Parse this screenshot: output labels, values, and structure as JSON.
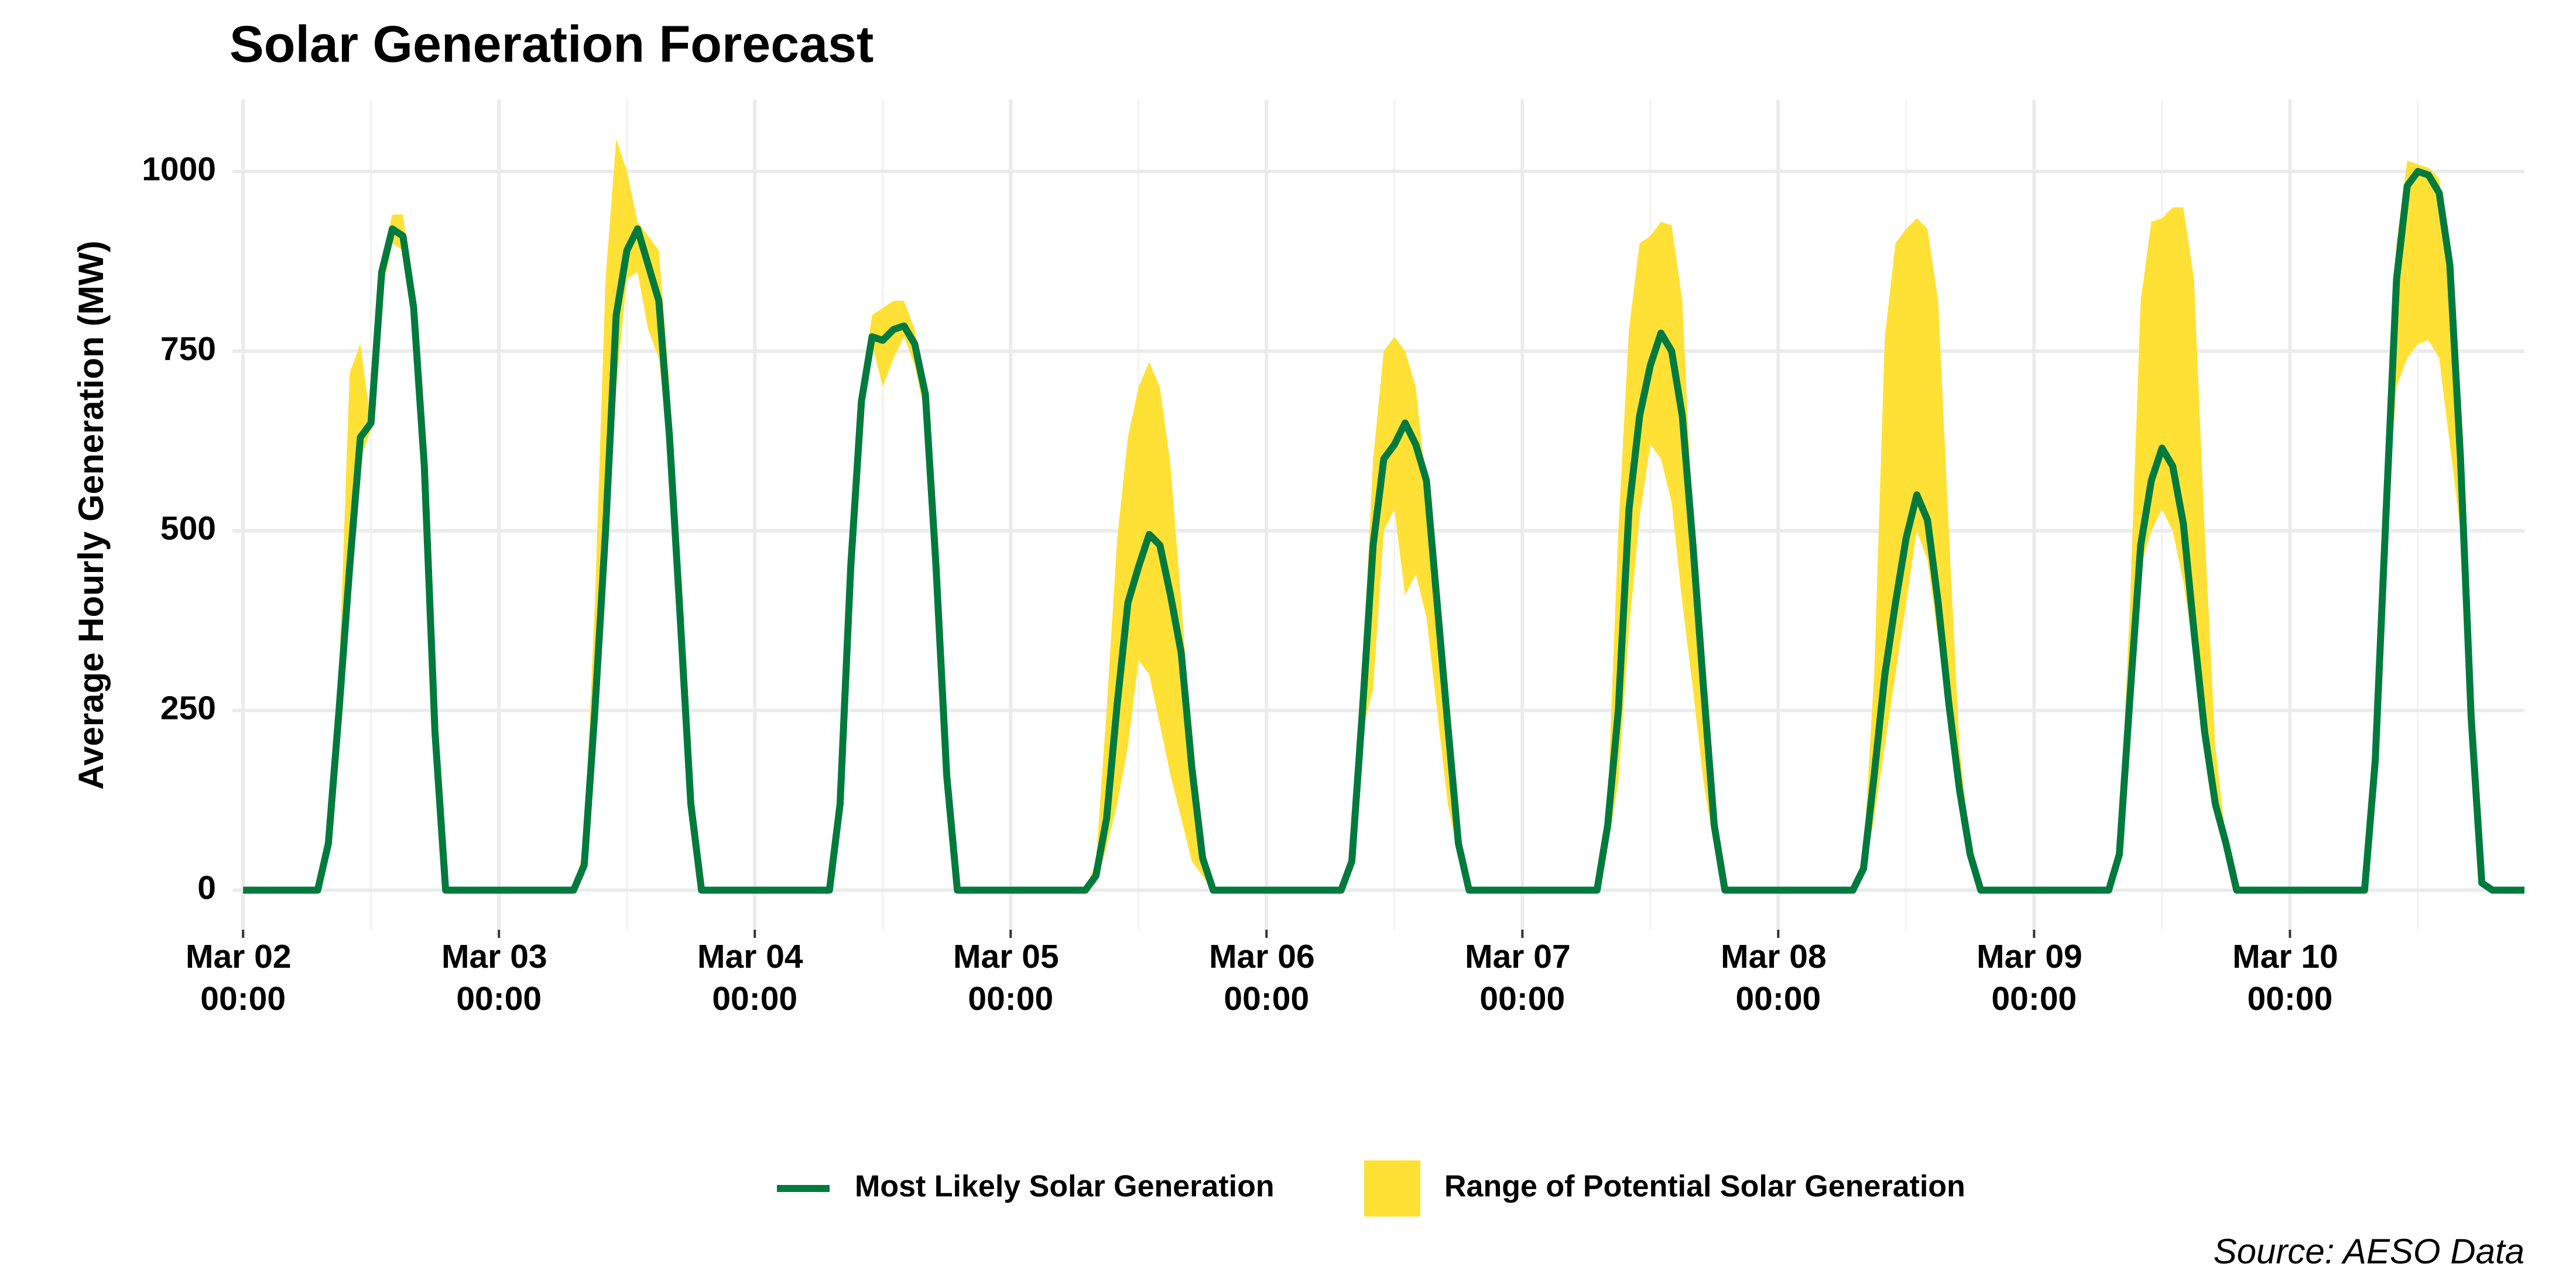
{
  "chart_data": {
    "type": "line",
    "title": "Solar Generation Forecast",
    "ylabel": "Average Hourly Generation (MW)",
    "source": "Source: AESO Data",
    "x": [
      "Mar 02 00:00",
      "Mar 02 07:00",
      "Mar 02 08:00",
      "Mar 02 09:00",
      "Mar 02 10:00",
      "Mar 02 11:00",
      "Mar 02 12:00",
      "Mar 02 13:00",
      "Mar 02 14:00",
      "Mar 02 15:00",
      "Mar 02 16:00",
      "Mar 02 17:00",
      "Mar 02 18:00",
      "Mar 02 19:00",
      "Mar 03 07:00",
      "Mar 03 08:00",
      "Mar 03 09:00",
      "Mar 03 10:00",
      "Mar 03 11:00",
      "Mar 03 12:00",
      "Mar 03 13:00",
      "Mar 03 14:00",
      "Mar 03 15:00",
      "Mar 03 16:00",
      "Mar 03 17:00",
      "Mar 03 18:00",
      "Mar 03 19:00",
      "Mar 04 07:00",
      "Mar 04 08:00",
      "Mar 04 09:00",
      "Mar 04 10:00",
      "Mar 04 11:00",
      "Mar 04 12:00",
      "Mar 04 13:00",
      "Mar 04 14:00",
      "Mar 04 15:00",
      "Mar 04 16:00",
      "Mar 04 17:00",
      "Mar 04 18:00",
      "Mar 04 19:00",
      "Mar 05 07:00",
      "Mar 05 08:00",
      "Mar 05 09:00",
      "Mar 05 10:00",
      "Mar 05 11:00",
      "Mar 05 12:00",
      "Mar 05 13:00",
      "Mar 05 14:00",
      "Mar 05 15:00",
      "Mar 05 16:00",
      "Mar 05 17:00",
      "Mar 05 18:00",
      "Mar 05 19:00",
      "Mar 06 07:00",
      "Mar 06 08:00",
      "Mar 06 09:00",
      "Mar 06 10:00",
      "Mar 06 11:00",
      "Mar 06 12:00",
      "Mar 06 13:00",
      "Mar 06 14:00",
      "Mar 06 15:00",
      "Mar 06 16:00",
      "Mar 06 17:00",
      "Mar 06 18:00",
      "Mar 06 19:00",
      "Mar 07 07:00",
      "Mar 07 08:00",
      "Mar 07 09:00",
      "Mar 07 10:00",
      "Mar 07 11:00",
      "Mar 07 12:00",
      "Mar 07 13:00",
      "Mar 07 14:00",
      "Mar 07 15:00",
      "Mar 07 16:00",
      "Mar 07 17:00",
      "Mar 07 18:00",
      "Mar 07 19:00",
      "Mar 08 07:00",
      "Mar 08 08:00",
      "Mar 08 09:00",
      "Mar 08 10:00",
      "Mar 08 11:00",
      "Mar 08 12:00",
      "Mar 08 13:00",
      "Mar 08 14:00",
      "Mar 08 15:00",
      "Mar 08 16:00",
      "Mar 08 17:00",
      "Mar 08 18:00",
      "Mar 08 19:00",
      "Mar 09 07:00",
      "Mar 09 08:00",
      "Mar 09 09:00",
      "Mar 09 10:00",
      "Mar 09 11:00",
      "Mar 09 12:00",
      "Mar 09 13:00",
      "Mar 09 14:00",
      "Mar 09 15:00",
      "Mar 09 16:00",
      "Mar 09 17:00",
      "Mar 09 18:00",
      "Mar 09 19:00",
      "Mar 10 07:00",
      "Mar 10 08:00",
      "Mar 10 09:00",
      "Mar 10 10:00",
      "Mar 10 11:00",
      "Mar 10 12:00",
      "Mar 10 13:00",
      "Mar 10 14:00",
      "Mar 10 15:00",
      "Mar 10 16:00",
      "Mar 10 17:00",
      "Mar 10 18:00",
      "Mar 10 19:00",
      "Mar 10 22:00"
    ],
    "series": [
      {
        "name": "Most Likely Solar Generation",
        "color": "#007a3d",
        "values": [
          0,
          0,
          65,
          250,
          450,
          630,
          650,
          860,
          920,
          910,
          810,
          590,
          220,
          0,
          0,
          35,
          250,
          500,
          800,
          890,
          920,
          870,
          820,
          630,
          380,
          120,
          0,
          0,
          120,
          450,
          680,
          770,
          765,
          780,
          785,
          760,
          690,
          450,
          160,
          0,
          0,
          20,
          100,
          260,
          400,
          450,
          495,
          480,
          410,
          330,
          170,
          45,
          0,
          0,
          40,
          250,
          480,
          600,
          620,
          650,
          620,
          570,
          400,
          230,
          65,
          0,
          0,
          90,
          250,
          530,
          660,
          730,
          775,
          750,
          660,
          480,
          280,
          90,
          0,
          0,
          30,
          160,
          300,
          400,
          490,
          550,
          515,
          400,
          260,
          140,
          50,
          0,
          0,
          50,
          270,
          480,
          570,
          615,
          590,
          510,
          360,
          220,
          120,
          65,
          0,
          0,
          180,
          520,
          850,
          980,
          1000,
          995,
          970,
          870,
          600,
          240,
          10,
          0,
          0
        ]
      },
      {
        "name": "Range of Potential Solar Generation",
        "color": "#ffe135",
        "low": [
          0,
          0,
          60,
          220,
          420,
          600,
          640,
          830,
          900,
          890,
          790,
          560,
          200,
          0,
          0,
          20,
          200,
          450,
          700,
          850,
          860,
          780,
          740,
          600,
          360,
          100,
          0,
          0,
          110,
          430,
          670,
          760,
          700,
          740,
          770,
          730,
          660,
          430,
          150,
          0,
          0,
          10,
          60,
          120,
          200,
          320,
          300,
          230,
          160,
          100,
          40,
          20,
          0,
          0,
          30,
          220,
          280,
          500,
          530,
          410,
          440,
          380,
          250,
          120,
          50,
          0,
          0,
          60,
          150,
          360,
          520,
          620,
          600,
          540,
          400,
          280,
          150,
          60,
          0,
          0,
          20,
          100,
          200,
          300,
          400,
          500,
          460,
          350,
          230,
          120,
          40,
          0,
          0,
          40,
          200,
          450,
          500,
          530,
          500,
          430,
          330,
          200,
          110,
          50,
          0,
          0,
          170,
          500,
          700,
          740,
          760,
          765,
          740,
          620,
          500,
          200,
          5,
          0,
          0
        ],
        "high": [
          0,
          0,
          70,
          300,
          720,
          760,
          650,
          880,
          940,
          940,
          820,
          600,
          220,
          0,
          0,
          60,
          400,
          850,
          1045,
          1000,
          930,
          910,
          890,
          700,
          400,
          130,
          0,
          0,
          130,
          470,
          700,
          800,
          810,
          820,
          820,
          780,
          700,
          460,
          170,
          0,
          0,
          40,
          250,
          490,
          630,
          700,
          735,
          700,
          590,
          400,
          200,
          60,
          0,
          0,
          60,
          300,
          600,
          750,
          770,
          750,
          700,
          560,
          400,
          230,
          70,
          0,
          0,
          120,
          500,
          780,
          900,
          910,
          930,
          925,
          820,
          500,
          290,
          100,
          0,
          0,
          50,
          300,
          770,
          900,
          920,
          935,
          920,
          820,
          500,
          200,
          60,
          0,
          0,
          70,
          400,
          820,
          930,
          935,
          950,
          950,
          850,
          500,
          200,
          70,
          0,
          0,
          190,
          600,
          900,
          1015,
          1010,
          1005,
          990,
          880,
          620,
          250,
          15,
          0,
          0
        ]
      }
    ],
    "xlim": [
      "Mar 01 23:00",
      "Mar 10 22:00"
    ],
    "xticks": [
      "Mar 02 00:00",
      "Mar 03 00:00",
      "Mar 04 00:00",
      "Mar 05 00:00",
      "Mar 06 00:00",
      "Mar 07 00:00",
      "Mar 08 00:00",
      "Mar 09 00:00",
      "Mar 10 00:00"
    ],
    "xminorticks": [
      "Mar 02 12:00",
      "Mar 03 12:00",
      "Mar 04 12:00",
      "Mar 05 12:00",
      "Mar 06 12:00",
      "Mar 07 12:00",
      "Mar 08 12:00",
      "Mar 09 12:00",
      "Mar 10 12:00"
    ],
    "ylim": [
      -55,
      1100
    ],
    "yticks": [
      0,
      250,
      500,
      750,
      1000
    ],
    "grid": true,
    "legend": "bottom"
  }
}
